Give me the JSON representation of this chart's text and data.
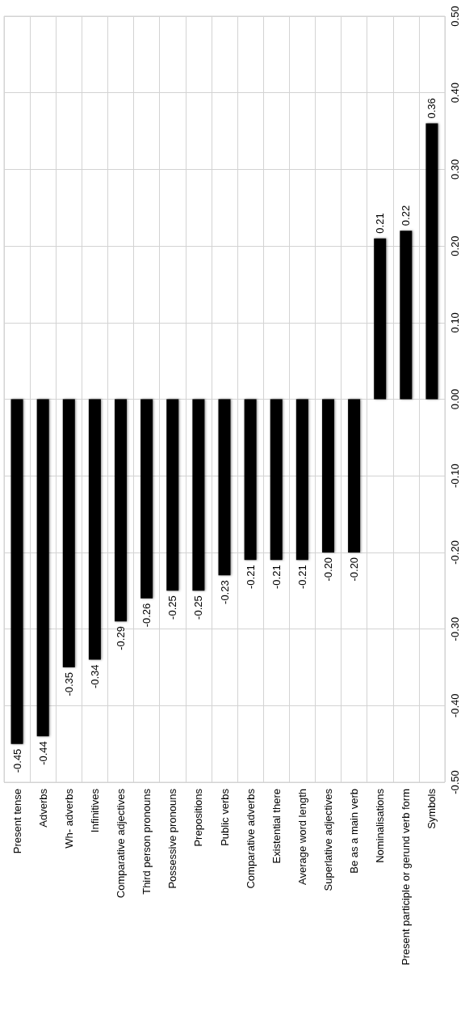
{
  "chart_data": {
    "type": "bar",
    "categories": [
      "Present tense",
      "Adverbs",
      "Wh- adverbs",
      "Infinitives",
      "Comparative adjectives",
      "Third person pronouns",
      "Possessive pronouns",
      "Prepositions",
      "Public verbs",
      "Comparative adverbs",
      "Existential there",
      "Average word length",
      "Superlative adjectives",
      "Be as a main verb",
      "Nominalisations",
      "Present participle or gerund verb form",
      "Symbols"
    ],
    "values": [
      -0.45,
      -0.44,
      -0.35,
      -0.34,
      -0.29,
      -0.26,
      -0.25,
      -0.25,
      -0.23,
      -0.21,
      -0.21,
      -0.21,
      -0.2,
      -0.2,
      0.21,
      0.22,
      0.36
    ],
    "value_labels": [
      "-0.45",
      "-0.44",
      "-0.35",
      "-0.34",
      "-0.29",
      "-0.26",
      "-0.25",
      "-0.25",
      "-0.23",
      "-0.21",
      "-0.21",
      "-0.21",
      "-0.20",
      "-0.20",
      "0.21",
      "0.22",
      "0.36"
    ],
    "color": "#000000",
    "ylim": [
      -0.5,
      0.5
    ],
    "yticks": [
      {
        "value": -0.5,
        "label": "-0.50"
      },
      {
        "value": -0.4,
        "label": "-0.40"
      },
      {
        "value": -0.3,
        "label": "-0.30"
      },
      {
        "value": -0.2,
        "label": "-0.20"
      },
      {
        "value": -0.1,
        "label": "-0.10"
      },
      {
        "value": 0,
        "label": "0.00"
      },
      {
        "value": 0.1,
        "label": "0.10"
      },
      {
        "value": 0.2,
        "label": "0.20"
      },
      {
        "value": 0.3,
        "label": "0.30"
      },
      {
        "value": 0.4,
        "label": "0.40"
      },
      {
        "value": 0.5,
        "label": "0.50"
      }
    ],
    "grid": true
  }
}
